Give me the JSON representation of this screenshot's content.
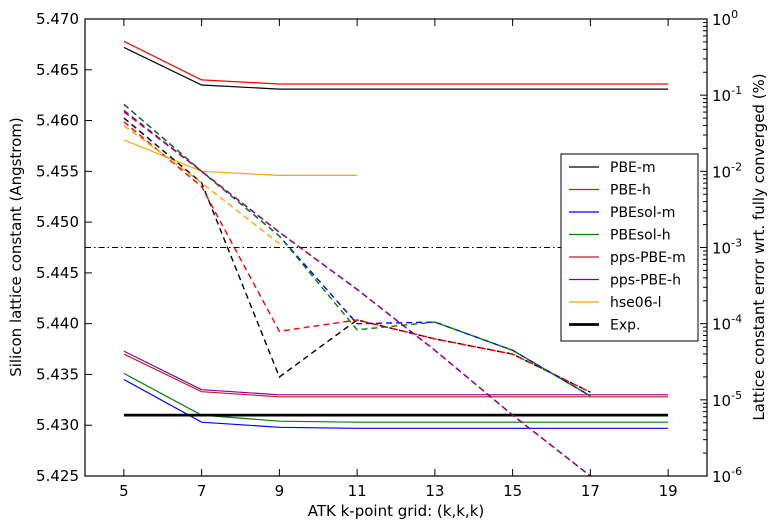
{
  "chart_data": {
    "type": "line",
    "xlabel": "ATK k-point grid: (k,k,k)",
    "ylabel": "Silicon lattice constant (Angstrom)",
    "y2label": "Lattice constant error wrt. fully converged (%)",
    "xlim": [
      4,
      20
    ],
    "ylim": [
      5.425,
      5.47
    ],
    "y2lim_log10": [
      -6,
      0
    ],
    "x_ticks": [
      "5",
      "7",
      "9",
      "11",
      "13",
      "15",
      "17",
      "19"
    ],
    "x_tick_values": [
      5,
      7,
      9,
      11,
      13,
      15,
      17,
      19
    ],
    "y_ticks": [
      "5.425",
      "5.430",
      "5.435",
      "5.440",
      "5.445",
      "5.450",
      "5.455",
      "5.460",
      "5.465",
      "5.470"
    ],
    "y_tick_values": [
      5.425,
      5.43,
      5.435,
      5.44,
      5.445,
      5.45,
      5.455,
      5.46,
      5.465,
      5.47
    ],
    "y2_ticks": [
      {
        "base": "10",
        "exp": "0",
        "log": 0
      },
      {
        "base": "10",
        "exp": "-1",
        "log": -1
      },
      {
        "base": "10",
        "exp": "-2",
        "log": -2
      },
      {
        "base": "10",
        "exp": "-3",
        "log": -3
      },
      {
        "base": "10",
        "exp": "-4",
        "log": -4
      },
      {
        "base": "10",
        "exp": "-5",
        "log": -5
      },
      {
        "base": "10",
        "exp": "-6",
        "log": -6
      }
    ],
    "legend_position": "center-right",
    "series": [
      {
        "name": "PBE-m",
        "color": "#000000",
        "x": [
          5,
          7,
          9,
          11,
          13,
          15,
          17,
          19
        ],
        "values": [
          5.4672,
          5.4635,
          5.4631,
          5.4631,
          5.4631,
          5.4631,
          5.4631,
          5.4631
        ]
      },
      {
        "name": "PBE-h",
        "color": "#ff0000",
        "x": [
          5,
          7,
          9,
          11,
          13,
          15,
          17,
          19
        ],
        "values": [
          5.4678,
          5.464,
          5.4636,
          5.4636,
          5.4636,
          5.4636,
          5.4636,
          5.4636
        ]
      },
      {
        "name": "PBEsol-m",
        "color": "#0000ff",
        "x": [
          5,
          7,
          9,
          11,
          13,
          15,
          17,
          19
        ],
        "values": [
          5.4345,
          5.4303,
          5.4298,
          5.4297,
          5.4297,
          5.4297,
          5.4297,
          5.4297
        ]
      },
      {
        "name": "PBEsol-h",
        "color": "#008000",
        "x": [
          5,
          7,
          9,
          11,
          13,
          15,
          17,
          19
        ],
        "values": [
          5.4351,
          5.431,
          5.4304,
          5.4303,
          5.4303,
          5.4303,
          5.4303,
          5.4303
        ]
      },
      {
        "name": "pps-PBE-m",
        "color": "#bb2222",
        "x": [
          5,
          7,
          9,
          11,
          13,
          15,
          17,
          19
        ],
        "values": [
          5.437,
          5.4333,
          5.4328,
          5.4328,
          5.4328,
          5.4328,
          5.4328,
          5.4328
        ]
      },
      {
        "name": "pps-PBE-h",
        "color": "#880099",
        "x": [
          5,
          7,
          9,
          11,
          13,
          15,
          17,
          19
        ],
        "values": [
          5.4373,
          5.4335,
          5.433,
          5.433,
          5.433,
          5.433,
          5.433,
          5.433
        ]
      },
      {
        "name": "hse06-l",
        "color": "#ffa500",
        "x": [
          5,
          7,
          9,
          11
        ],
        "values": [
          5.4581,
          5.455,
          5.4546,
          5.4546
        ]
      },
      {
        "name": "Exp.",
        "color": "#000000",
        "bold": true,
        "x": [
          5,
          19
        ],
        "values": [
          5.431,
          5.431
        ]
      }
    ],
    "error_series_log10": [
      {
        "name": "PBE-m",
        "color": "#000000",
        "x": [
          5,
          7,
          9,
          11,
          13,
          15,
          17
        ],
        "values": [
          -1.3,
          -2.15,
          -4.7,
          -3.95,
          -4.2,
          -4.4,
          -4.9
        ]
      },
      {
        "name": "PBE-h",
        "color": "#ff0000",
        "x": [
          5,
          7,
          9,
          11,
          13,
          15,
          17
        ],
        "values": [
          -1.35,
          -2.2,
          -4.1,
          -3.95,
          -4.2,
          -4.4,
          -4.9
        ]
      },
      {
        "name": "PBEsol-m",
        "color": "#0000ff",
        "x": [
          5,
          7,
          9,
          11,
          13,
          15,
          17
        ],
        "values": [
          -1.12,
          -2.0,
          -2.85,
          -4.0,
          -3.98,
          -4.35,
          -4.95
        ]
      },
      {
        "name": "PBEsol-h",
        "color": "#008000",
        "x": [
          5,
          7,
          9,
          11,
          13,
          15,
          17
        ],
        "values": [
          -1.12,
          -2.0,
          -2.85,
          -4.08,
          -3.98,
          -4.35,
          -4.95
        ]
      },
      {
        "name": "pps-PBE-m",
        "color": "#bb2222",
        "x": [
          5,
          7,
          9,
          11,
          13,
          15,
          17
        ],
        "values": [
          -1.22,
          -2.0,
          -2.8,
          -3.55,
          -4.35,
          -5.2,
          -6.0
        ]
      },
      {
        "name": "pps-PBE-h",
        "color": "#880099",
        "x": [
          5,
          7,
          9,
          11,
          13,
          15,
          17
        ],
        "values": [
          -1.2,
          -2.0,
          -2.8,
          -3.55,
          -4.35,
          -5.2,
          -6.0
        ]
      },
      {
        "name": "hse06-l",
        "color": "#ffa500",
        "x": [
          5,
          7,
          9
        ],
        "values": [
          -1.4,
          -2.15,
          -2.95
        ]
      }
    ],
    "reference_line_log10": -3
  }
}
